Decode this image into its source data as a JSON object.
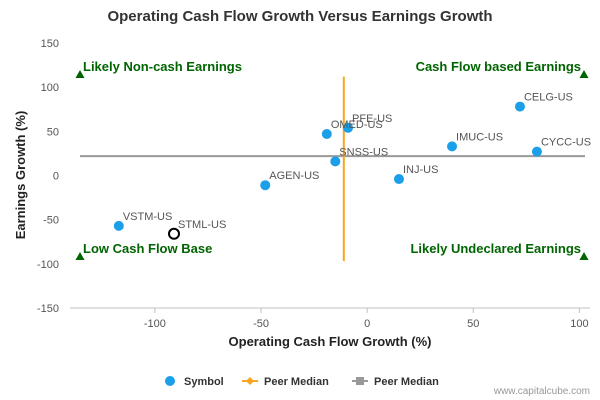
{
  "chart_data": {
    "type": "scatter",
    "title": "Operating Cash Flow Growth Versus Earnings Growth",
    "xlabel": "Operating Cash Flow Growth (%)",
    "ylabel": "Earnings Growth (%)",
    "xlim": [
      -140,
      105
    ],
    "ylim": [
      -150,
      150
    ],
    "xticks": [
      -100,
      -50,
      0,
      50,
      100
    ],
    "yticks": [
      150,
      100,
      50,
      0,
      -50,
      -100,
      -150
    ],
    "grid": false,
    "points": [
      {
        "label": "CELG-US",
        "x": 72,
        "y": 78
      },
      {
        "label": "CYCC-US",
        "x": 80,
        "y": 27
      },
      {
        "label": "IMUC-US",
        "x": 40,
        "y": 33
      },
      {
        "label": "INJ-US",
        "x": 15,
        "y": -4
      },
      {
        "label": "PFE-US",
        "x": -9,
        "y": 54
      },
      {
        "label": "OMED-US",
        "x": -19,
        "y": 47
      },
      {
        "label": "SNSS-US",
        "x": -15,
        "y": 16
      },
      {
        "label": "AGEN-US",
        "x": -48,
        "y": -11
      },
      {
        "label": "VSTM-US",
        "x": -117,
        "y": -57
      }
    ],
    "highlight": {
      "label": "STML-US",
      "x": -91,
      "y": -66
    },
    "peer_median_x": -11,
    "peer_median_y": 22,
    "quadrant_labels": {
      "top_left": "Likely Non-cash Earnings",
      "top_right": "Cash Flow based Earnings",
      "bottom_left": "Low Cash Flow Base",
      "bottom_right": "Likely Undeclared Earnings"
    },
    "legend": {
      "position": "bottom-center",
      "items": [
        {
          "name": "Symbol",
          "color": "#1a9fe8",
          "kind": "circle"
        },
        {
          "name": "Peer Median",
          "color": "#f5a623",
          "kind": "vline"
        },
        {
          "name": "Peer Median",
          "color": "#999999",
          "kind": "hline"
        }
      ]
    },
    "credit": "www.capitalcube.com",
    "colors": {
      "point": "#1a9fe8",
      "vertical_median": "#f5a623",
      "horizontal_median": "#999999",
      "quadrant_text": "#006400",
      "highlight_stroke": "#000000"
    }
  }
}
